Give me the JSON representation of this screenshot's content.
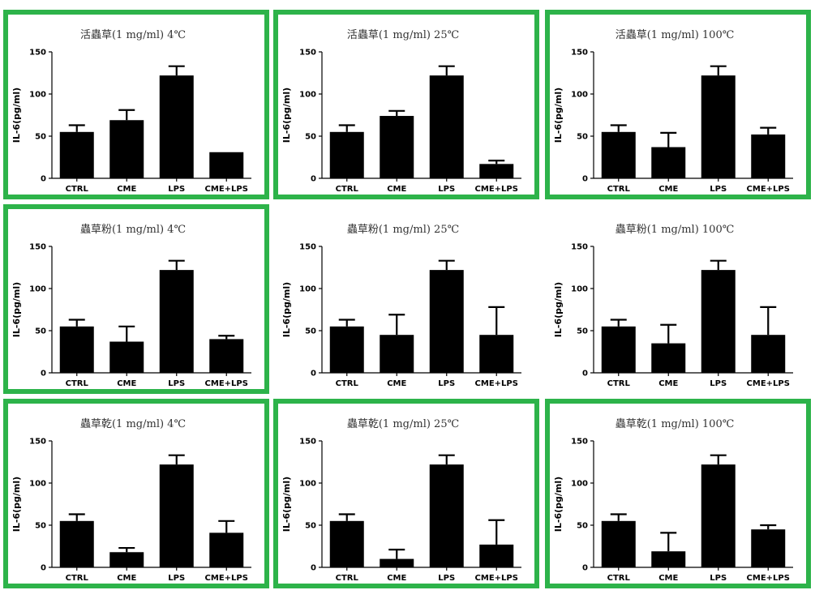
{
  "frame_color": "#2db34a",
  "bar_color": "#000000",
  "chart_data": [
    {
      "type": "bar",
      "title": "活蟲草(1 mg/ml) 4℃",
      "ylabel": "IL-6(pg/ml)",
      "ylim": [
        0,
        150
      ],
      "yticks": [
        0,
        50,
        100,
        150
      ],
      "categories": [
        "CTRL",
        "CME",
        "LPS",
        "CME+LPS"
      ],
      "values": [
        55,
        69,
        122,
        31
      ],
      "errors": [
        8,
        12,
        11,
        0
      ],
      "framed": true
    },
    {
      "type": "bar",
      "title": "活蟲草(1 mg/ml) 25℃",
      "ylabel": "IL-6(pg/ml)",
      "ylim": [
        0,
        150
      ],
      "yticks": [
        0,
        50,
        100,
        150
      ],
      "categories": [
        "CTRL",
        "CME",
        "LPS",
        "CME+LPS"
      ],
      "values": [
        55,
        74,
        122,
        17
      ],
      "errors": [
        8,
        6,
        11,
        4
      ],
      "framed": true
    },
    {
      "type": "bar",
      "title": "活蟲草(1 mg/ml) 100℃",
      "ylabel": "IL-6(pg/ml)",
      "ylim": [
        0,
        150
      ],
      "yticks": [
        0,
        50,
        100,
        150
      ],
      "categories": [
        "CTRL",
        "CME",
        "LPS",
        "CME+LPS"
      ],
      "values": [
        55,
        37,
        122,
        52
      ],
      "errors": [
        8,
        17,
        11,
        8
      ],
      "framed": true
    },
    {
      "type": "bar",
      "title": "蟲草粉(1 mg/ml) 4℃",
      "ylabel": "IL-6(pg/ml)",
      "ylim": [
        0,
        150
      ],
      "yticks": [
        0,
        50,
        100,
        150
      ],
      "categories": [
        "CTRL",
        "CME",
        "LPS",
        "CME+LPS"
      ],
      "values": [
        55,
        37,
        122,
        40
      ],
      "errors": [
        8,
        18,
        11,
        4
      ],
      "framed": true
    },
    {
      "type": "bar",
      "title": "蟲草粉(1 mg/ml) 25℃",
      "ylabel": "IL-6(pg/ml)",
      "ylim": [
        0,
        150
      ],
      "yticks": [
        0,
        50,
        100,
        150
      ],
      "categories": [
        "CTRL",
        "CME",
        "LPS",
        "CME+LPS"
      ],
      "values": [
        55,
        45,
        122,
        45
      ],
      "errors": [
        8,
        24,
        11,
        33
      ],
      "framed": false
    },
    {
      "type": "bar",
      "title": "蟲草粉(1 mg/ml) 100℃",
      "ylabel": "IL-6(pg/ml)",
      "ylim": [
        0,
        150
      ],
      "yticks": [
        0,
        50,
        100,
        150
      ],
      "categories": [
        "CTRL",
        "CME",
        "LPS",
        "CME+LPS"
      ],
      "values": [
        55,
        35,
        122,
        45
      ],
      "errors": [
        8,
        22,
        11,
        33
      ],
      "framed": false
    },
    {
      "type": "bar",
      "title": "蟲草乾(1 mg/ml) 4℃",
      "ylabel": "IL-6(pg/ml)",
      "ylim": [
        0,
        150
      ],
      "yticks": [
        0,
        50,
        100,
        150
      ],
      "categories": [
        "CTRL",
        "CME",
        "LPS",
        "CME+LPS"
      ],
      "values": [
        55,
        18,
        122,
        41
      ],
      "errors": [
        8,
        5,
        11,
        14
      ],
      "framed": true
    },
    {
      "type": "bar",
      "title": "蟲草乾(1 mg/ml) 25℃",
      "ylabel": "IL-6(pg/ml)",
      "ylim": [
        0,
        150
      ],
      "yticks": [
        0,
        50,
        100,
        150
      ],
      "categories": [
        "CTRL",
        "CME",
        "LPS",
        "CME+LPS"
      ],
      "values": [
        55,
        10,
        122,
        27
      ],
      "errors": [
        8,
        11,
        11,
        29
      ],
      "framed": true
    },
    {
      "type": "bar",
      "title": "蟲草乾(1 mg/ml) 100℃",
      "ylabel": "IL-6(pg/ml)",
      "ylim": [
        0,
        150
      ],
      "yticks": [
        0,
        50,
        100,
        150
      ],
      "categories": [
        "CTRL",
        "CME",
        "LPS",
        "CME+LPS"
      ],
      "values": [
        55,
        19,
        122,
        45
      ],
      "errors": [
        8,
        22,
        11,
        5
      ],
      "framed": true
    }
  ]
}
